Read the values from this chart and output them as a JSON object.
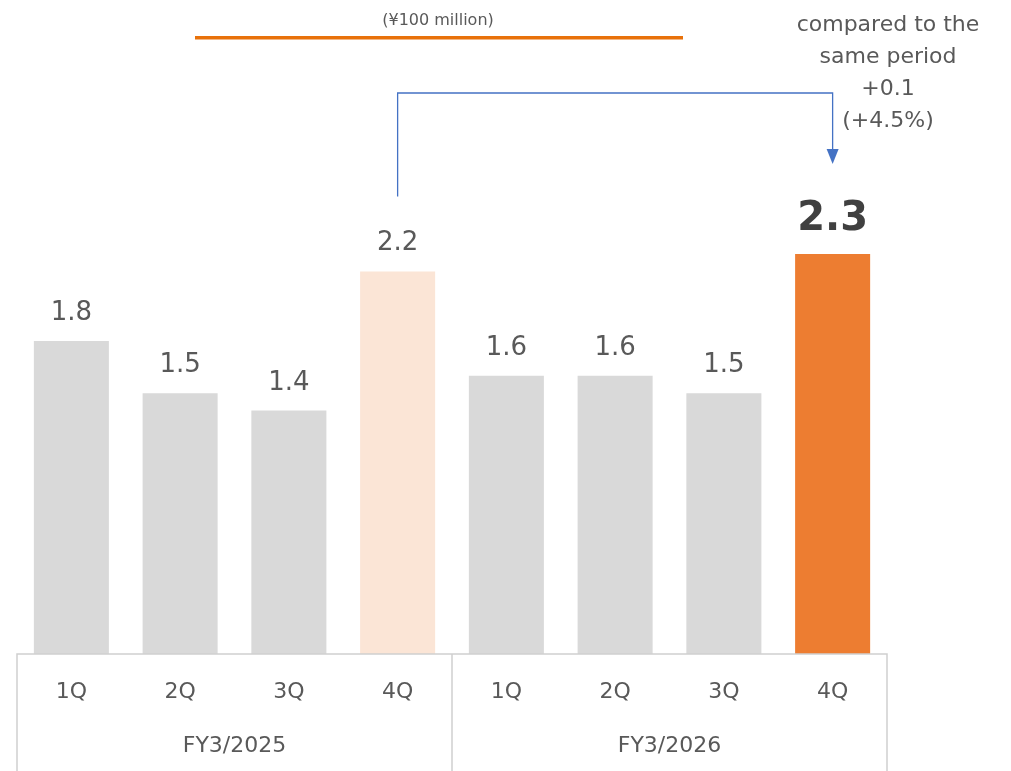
{
  "chart_data": {
    "type": "bar",
    "subtitle": "(¥100 million)",
    "categories": [
      "1Q",
      "2Q",
      "3Q",
      "4Q",
      "1Q",
      "2Q",
      "3Q",
      "4Q"
    ],
    "values": [
      1.8,
      1.5,
      1.4,
      2.2,
      1.6,
      1.6,
      1.5,
      2.3
    ],
    "colors": [
      "#d9d9d9",
      "#d9d9d9",
      "#d9d9d9",
      "#fbe5d6",
      "#d9d9d9",
      "#d9d9d9",
      "#d9d9d9",
      "#ed7d31"
    ],
    "data_labels": true,
    "annotations": [
      "FY3/2025",
      "FY3/2026",
      "compared to the\nsame period\n+0.1\n(+4.5%)"
    ]
  }
}
